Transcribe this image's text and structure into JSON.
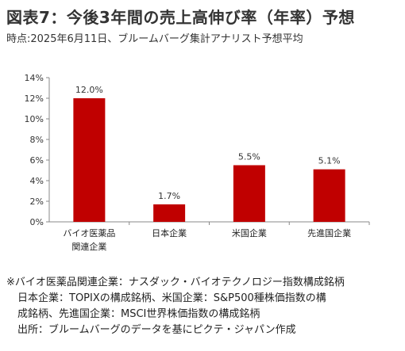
{
  "chart_data": {
    "type": "bar",
    "title": "図表7：今後3年間の売上高伸び率（年率）予想",
    "subtitle": "時点:2025年6月11日、ブルームバーグ集計アナリスト予想平均",
    "categories": [
      [
        "バイオ医薬品",
        "関連企業"
      ],
      [
        "日本企業"
      ],
      [
        "米国企業"
      ],
      [
        "先進国企業"
      ]
    ],
    "values": [
      12.0,
      1.7,
      5.5,
      5.1
    ],
    "data_labels": [
      "12.0%",
      "1.7%",
      "5.5%",
      "5.1%"
    ],
    "ylim": [
      0,
      14
    ],
    "yticks": [
      0,
      2,
      4,
      6,
      8,
      10,
      12,
      14
    ],
    "ytick_labels": [
      "0%",
      "2%",
      "4%",
      "6%",
      "8%",
      "10%",
      "12%",
      "14%"
    ],
    "xlabel": "",
    "ylabel": "",
    "bar_color": "#C00000",
    "grid": false
  },
  "notes": [
    "※バイオ医薬品関連企業：ナスダック・バイオテクノロジー指数構成銘柄",
    "日本企業：TOPIXの構成銘柄、米国企業：S&P500種株価指数の構",
    "成銘柄、先進国企業：MSCI世界株価指数の構成銘柄",
    "出所：ブルームバーグのデータを基にピクテ・ジャパン作成"
  ]
}
